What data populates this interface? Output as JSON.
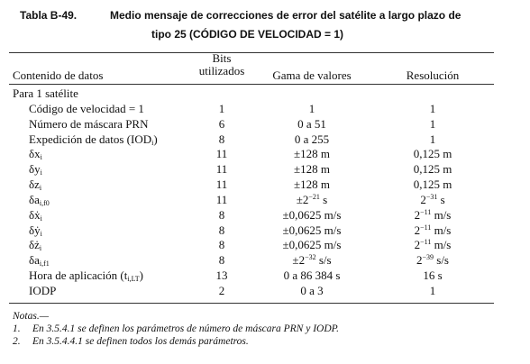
{
  "header": {
    "label": "Tabla B-49.",
    "title_lines": [
      "Medio mensaje de correcciones de error del satélite a largo plazo de",
      "tipo 25 (CÓDIGO DE VELOCIDAD = 1)"
    ]
  },
  "table": {
    "columns": [
      "Contenido de datos",
      "Bits utilizados",
      "Gama de valores",
      "Resolución"
    ],
    "group": "Para 1 satélite",
    "rows": [
      [
        "Código de velocidad = 1",
        "1",
        "1",
        "1"
      ],
      [
        "Número de máscara PRN",
        "6",
        "0 a 51",
        "1"
      ],
      [
        [
          {
            "text": "Expedición de datos (IOD"
          },
          {
            "sub": "i"
          },
          {
            "text": ")"
          }
        ],
        "8",
        "0 a 255",
        "1"
      ],
      [
        [
          {
            "text": "δx"
          },
          {
            "sub": "i"
          }
        ],
        "11",
        "±128 m",
        "0,125 m"
      ],
      [
        [
          {
            "text": "δy"
          },
          {
            "sub": "i"
          }
        ],
        "11",
        "±128 m",
        "0,125 m"
      ],
      [
        [
          {
            "text": "δz"
          },
          {
            "sub": "i"
          }
        ],
        "11",
        "±128 m",
        "0,125 m"
      ],
      [
        [
          {
            "text": "δa"
          },
          {
            "sub": "i,f0"
          }
        ],
        "11",
        [
          {
            "text": "±2"
          },
          {
            "sup": "−21"
          },
          {
            "text": " s"
          }
        ],
        [
          {
            "text": "2"
          },
          {
            "sup": "−31"
          },
          {
            "text": " s"
          }
        ]
      ],
      [
        [
          {
            "text": "δẋ"
          },
          {
            "sub": "i"
          }
        ],
        "8",
        "±0,0625 m/s",
        [
          {
            "text": "2"
          },
          {
            "sup": "−11"
          },
          {
            "text": " m/s"
          }
        ]
      ],
      [
        [
          {
            "text": "δẏ"
          },
          {
            "sub": "i"
          }
        ],
        "8",
        "±0,0625 m/s",
        [
          {
            "text": "2"
          },
          {
            "sup": "−11"
          },
          {
            "text": " m/s"
          }
        ]
      ],
      [
        [
          {
            "text": "δż"
          },
          {
            "sub": "i"
          }
        ],
        "8",
        "±0,0625 m/s",
        [
          {
            "text": "2"
          },
          {
            "sup": "−11"
          },
          {
            "text": " m/s"
          }
        ]
      ],
      [
        [
          {
            "text": "δa"
          },
          {
            "sub": "i,f1"
          }
        ],
        "8",
        [
          {
            "text": "±2"
          },
          {
            "sup": "−32"
          },
          {
            "text": " s/s"
          }
        ],
        [
          {
            "text": "2"
          },
          {
            "sup": "−39"
          },
          {
            "text": " s/s"
          }
        ]
      ],
      [
        [
          {
            "text": "Hora de aplicación (t"
          },
          {
            "sub": "i,LT"
          },
          {
            "text": ")"
          }
        ],
        "13",
        "0 a 86 384 s",
        "16 s"
      ],
      [
        "IODP",
        "2",
        "0 a 3",
        "1"
      ]
    ]
  },
  "notes": {
    "title": "Notas.—",
    "items": [
      {
        "number": "1.",
        "text": "En 3.5.4.1 se definen los parámetros de número de máscara PRN y IODP."
      },
      {
        "number": "2.",
        "text": "En 3.5.4.4.1 se definen todos los demás parámetros."
      }
    ]
  }
}
